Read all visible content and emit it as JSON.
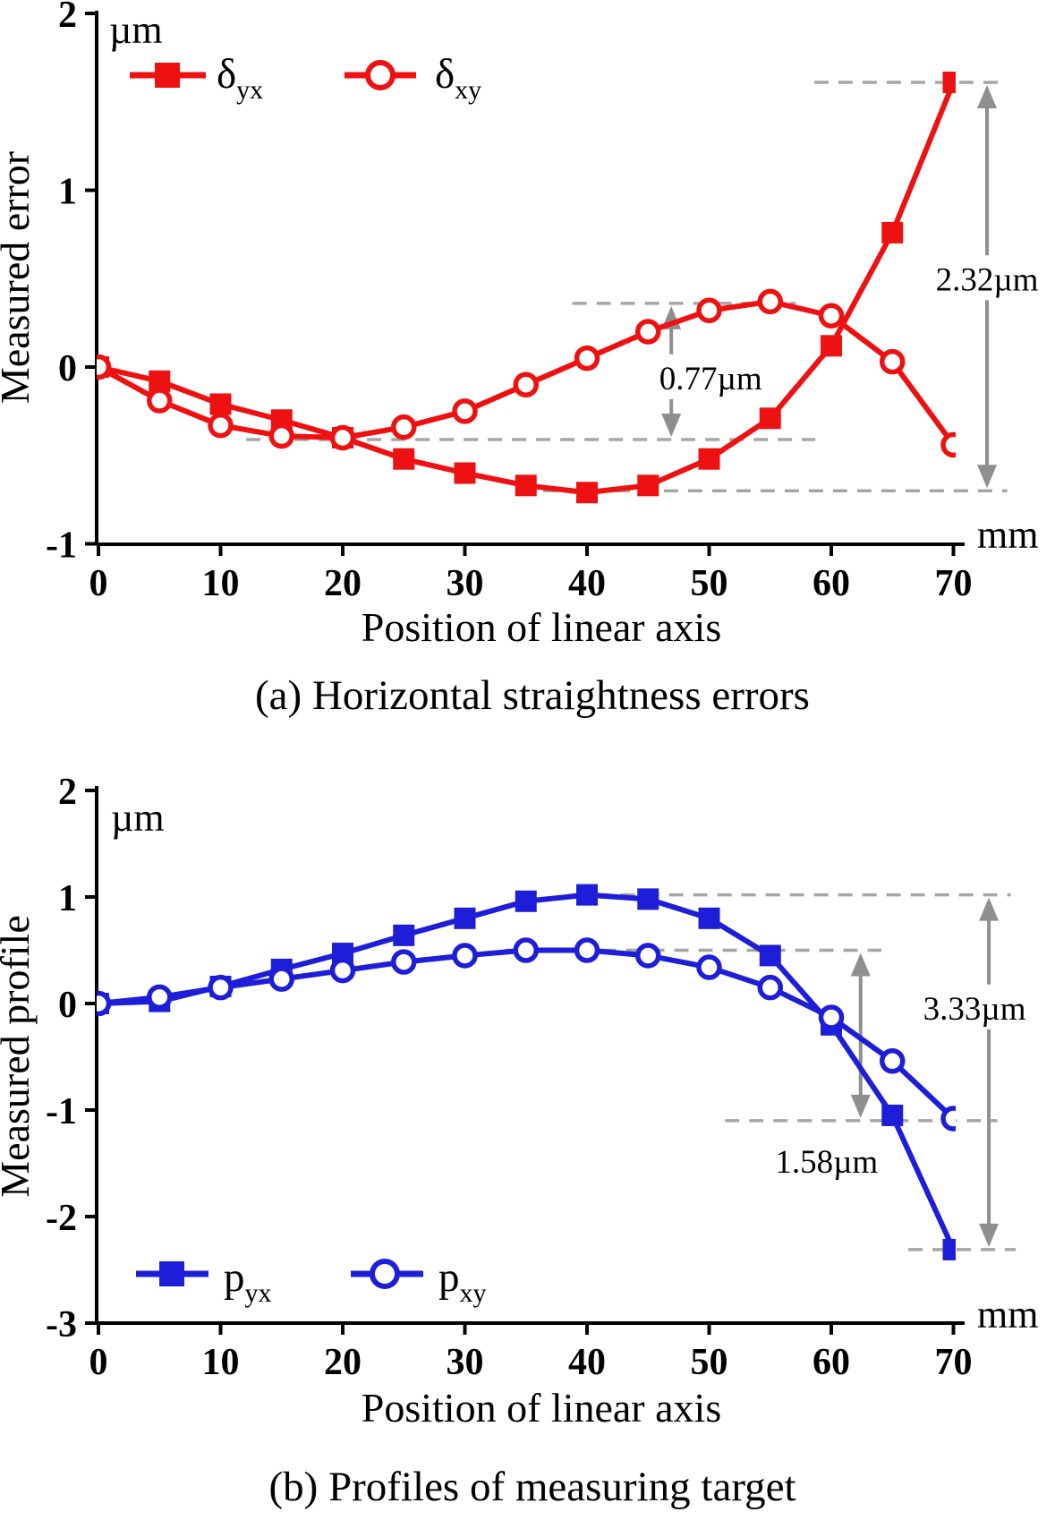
{
  "page": {
    "background": "#ffffff"
  },
  "chart_data": [
    {
      "type": "line",
      "caption": "(a) Horizontal straightness errors",
      "xlabel": "Position of linear axis",
      "ylabel": "Measured error",
      "y_unit": "µm",
      "x_unit": "mm",
      "xlim": [
        0,
        70
      ],
      "ylim": [
        -1,
        2
      ],
      "xticks": [
        0,
        10,
        20,
        30,
        40,
        50,
        60,
        70
      ],
      "yticks": [
        -1,
        0,
        1,
        2
      ],
      "grid": false,
      "legend_position": "top-left-inside",
      "color": "#ee1111",
      "x": [
        0,
        5,
        10,
        15,
        20,
        25,
        30,
        35,
        40,
        45,
        50,
        55,
        60,
        65,
        70
      ],
      "series": [
        {
          "name": "delta-yx",
          "legend_main": "δ",
          "legend_sub": "yx",
          "marker": "square",
          "values": [
            0.0,
            -0.08,
            -0.21,
            -0.3,
            -0.4,
            -0.52,
            -0.6,
            -0.67,
            -0.71,
            -0.67,
            -0.52,
            -0.29,
            0.12,
            0.76,
            1.61
          ]
        },
        {
          "name": "delta-xy",
          "legend_main": "δ",
          "legend_sub": "xy",
          "marker": "circle",
          "values": [
            0.0,
            -0.19,
            -0.33,
            -0.39,
            -0.4,
            -0.34,
            -0.25,
            -0.1,
            0.05,
            0.2,
            0.32,
            0.37,
            0.29,
            0.03,
            -0.44
          ]
        }
      ],
      "annotations": {
        "dashed_lines": [
          {
            "v": 0.36,
            "mm1": 38.8,
            "mm2": 57.1
          },
          {
            "v": -0.41,
            "mm1": 12.1,
            "mm2": 58.7
          },
          {
            "v": -0.7,
            "mm1": 36.4,
            "mm2": 74.4
          },
          {
            "v": 1.61,
            "mm1": 58.6,
            "mm2": 74.4
          }
        ],
        "arrows": [
          {
            "x_mm": 46.9,
            "v_top": 0.36,
            "v_bottom": -0.41,
            "label": "0.77µm",
            "label_v": -0.06,
            "label_dx": 44,
            "interrupt": true
          },
          {
            "x_mm": 72.75,
            "v_top": 1.61,
            "v_bottom": -0.7,
            "label": "2.32µm",
            "label_v": 0.5,
            "label_dx": 0,
            "interrupt": true
          }
        ]
      }
    },
    {
      "type": "line",
      "caption": "(b) Profiles of measuring target",
      "xlabel": "Position of linear axis",
      "ylabel": "Measured profile",
      "y_unit": "µm",
      "x_unit": "mm",
      "xlim": [
        0,
        70
      ],
      "ylim": [
        -3,
        2
      ],
      "xticks": [
        0,
        10,
        20,
        30,
        40,
        50,
        60,
        70
      ],
      "yticks": [
        -3,
        -2,
        -1,
        0,
        1,
        2
      ],
      "grid": false,
      "legend_position": "bottom-left-inside",
      "color": "#1e1ed8",
      "x": [
        0,
        5,
        10,
        15,
        20,
        25,
        30,
        35,
        40,
        45,
        50,
        55,
        60,
        65,
        70
      ],
      "series": [
        {
          "name": "p-yx",
          "legend_main": "p",
          "legend_sub": "yx",
          "marker": "square",
          "values": [
            0.0,
            0.02,
            0.16,
            0.32,
            0.47,
            0.64,
            0.8,
            0.96,
            1.02,
            0.98,
            0.8,
            0.45,
            -0.2,
            -1.05,
            -2.31
          ]
        },
        {
          "name": "p-xy",
          "legend_main": "p",
          "legend_sub": "xy",
          "marker": "circle",
          "values": [
            0.0,
            0.06,
            0.15,
            0.23,
            0.31,
            0.39,
            0.45,
            0.5,
            0.5,
            0.45,
            0.34,
            0.15,
            -0.13,
            -0.54,
            -1.08
          ]
        }
      ],
      "annotations": {
        "dashed_lines": [
          {
            "v": 1.02,
            "mm1": 38.8,
            "mm2": 74.7
          },
          {
            "v": 0.5,
            "mm1": 33.3,
            "mm2": 64.1
          },
          {
            "v": -1.1,
            "mm1": 51.3,
            "mm2": 73.6
          },
          {
            "v": -2.31,
            "mm1": 66.3,
            "mm2": 75.1
          }
        ],
        "arrows": [
          {
            "x_mm": 62.4,
            "v_top": 0.5,
            "v_bottom": -1.1,
            "label": "1.58µm",
            "label_v": -1.48,
            "label_dx": -38,
            "interrupt": false
          },
          {
            "x_mm": 72.9,
            "v_top": 1.02,
            "v_bottom": -2.31,
            "label": "3.33µm",
            "label_v": -0.04,
            "label_dx": -16,
            "interrupt": true
          }
        ]
      }
    }
  ]
}
